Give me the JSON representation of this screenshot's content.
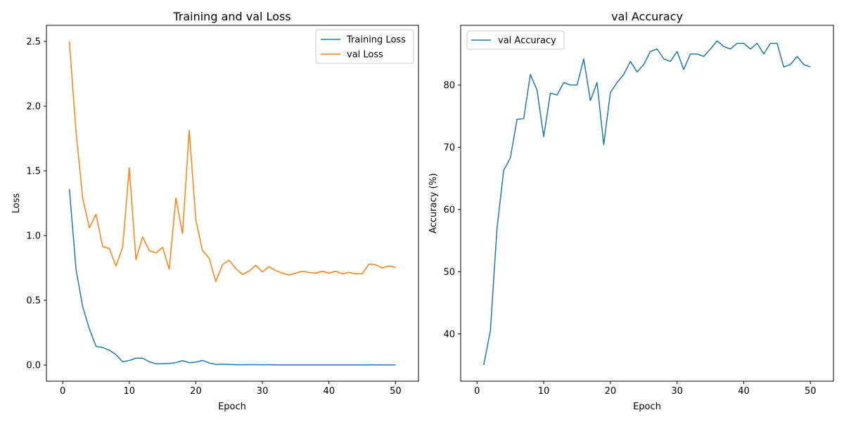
{
  "chart_data": [
    {
      "type": "line",
      "title": "Training and val Loss",
      "xlabel": "Epoch",
      "ylabel": "Loss",
      "xlim": [
        -2.45,
        53.45
      ],
      "ylim": [
        -0.125,
        2.625
      ],
      "xticks": [
        0,
        10,
        20,
        30,
        40,
        50
      ],
      "yticks": [
        0.0,
        0.5,
        1.0,
        1.5,
        2.0,
        2.5
      ],
      "ytick_labels": [
        "0.0",
        "0.5",
        "1.0",
        "1.5",
        "2.0",
        "2.5"
      ],
      "legend_position": "upper right",
      "grid": false,
      "x": [
        1,
        2,
        3,
        4,
        5,
        6,
        7,
        8,
        9,
        10,
        11,
        12,
        13,
        14,
        15,
        16,
        17,
        18,
        19,
        20,
        21,
        22,
        23,
        24,
        25,
        26,
        27,
        28,
        29,
        30,
        31,
        32,
        33,
        34,
        35,
        36,
        37,
        38,
        39,
        40,
        41,
        42,
        43,
        44,
        45,
        46,
        47,
        48,
        49,
        50
      ],
      "series": [
        {
          "name": "Training Loss",
          "color": "#1f77b4",
          "values": [
            1.36,
            0.74,
            0.45,
            0.28,
            0.145,
            0.135,
            0.115,
            0.08,
            0.025,
            0.035,
            0.053,
            0.053,
            0.025,
            0.01,
            0.01,
            0.012,
            0.018,
            0.034,
            0.018,
            0.022,
            0.036,
            0.016,
            0.005,
            0.006,
            0.004,
            0.003,
            0.002,
            0.003,
            0.003,
            0.002,
            0.003,
            0.001,
            0.001,
            0.001,
            0.001,
            0.001,
            0.001,
            0.001,
            0.001,
            0.001,
            0.001,
            0.001,
            0.001,
            0.001,
            0.001,
            0.002,
            0.001,
            0.001,
            0.001,
            0.001
          ]
        },
        {
          "name": "val Loss",
          "color": "#ff7f0e",
          "values": [
            2.5,
            1.8,
            1.29,
            1.06,
            1.165,
            0.915,
            0.9,
            0.765,
            0.91,
            1.525,
            0.815,
            0.99,
            0.885,
            0.865,
            0.91,
            0.74,
            1.29,
            1.015,
            1.815,
            1.12,
            0.885,
            0.825,
            0.645,
            0.775,
            0.81,
            0.745,
            0.7,
            0.725,
            0.77,
            0.72,
            0.76,
            0.73,
            0.71,
            0.695,
            0.71,
            0.725,
            0.715,
            0.71,
            0.725,
            0.71,
            0.725,
            0.705,
            0.715,
            0.705,
            0.705,
            0.78,
            0.775,
            0.75,
            0.765,
            0.755
          ]
        }
      ]
    },
    {
      "type": "line",
      "title": "val Accuracy",
      "xlabel": "Epoch",
      "ylabel": "Accuracy (%)",
      "xlim": [
        -2.45,
        53.45
      ],
      "ylim": [
        32.4,
        89.6
      ],
      "xticks": [
        0,
        10,
        20,
        30,
        40,
        50
      ],
      "yticks": [
        40,
        50,
        60,
        70,
        80
      ],
      "ytick_labels": [
        "40",
        "50",
        "60",
        "70",
        "80"
      ],
      "legend_position": "upper left",
      "grid": false,
      "x": [
        1,
        2,
        3,
        4,
        5,
        6,
        7,
        8,
        9,
        10,
        11,
        12,
        13,
        14,
        15,
        16,
        17,
        18,
        19,
        20,
        21,
        22,
        23,
        24,
        25,
        26,
        27,
        28,
        29,
        30,
        31,
        32,
        33,
        34,
        35,
        36,
        37,
        38,
        39,
        40,
        41,
        42,
        43,
        44,
        45,
        46,
        47,
        48,
        49,
        50
      ],
      "series": [
        {
          "name": "val Accuracy",
          "color": "#1f77b4",
          "values": [
            35.0,
            40.5,
            57.0,
            66.3,
            68.3,
            74.5,
            74.6,
            81.7,
            79.2,
            71.7,
            78.7,
            78.4,
            80.4,
            80.0,
            80.0,
            84.2,
            77.5,
            80.4,
            70.4,
            78.8,
            80.4,
            81.7,
            83.8,
            82.1,
            83.3,
            85.4,
            85.8,
            84.2,
            83.8,
            85.4,
            82.5,
            85.0,
            85.0,
            84.6,
            85.8,
            87.1,
            86.2,
            85.8,
            86.7,
            86.7,
            85.8,
            86.7,
            85.0,
            86.7,
            86.7,
            82.9,
            83.3,
            84.6,
            83.3,
            82.9
          ]
        }
      ]
    }
  ]
}
